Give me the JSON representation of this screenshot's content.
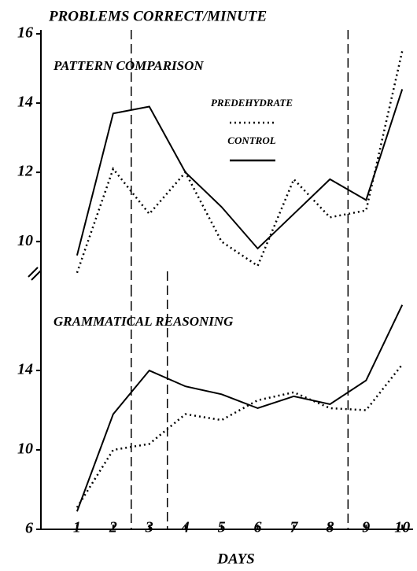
{
  "chart_data": [
    {
      "type": "line",
      "ylabel": "PROBLEMS CORRECT/MINUTE",
      "title": "PATTERN COMPARISON",
      "x": [
        1,
        2,
        3,
        4,
        5,
        6,
        7,
        8,
        9,
        10
      ],
      "series": [
        {
          "name": "PREDEHYDRATE",
          "color": "#000000",
          "style": "dotted",
          "values": [
            9.1,
            12.1,
            10.8,
            12.0,
            10.0,
            9.3,
            11.8,
            10.7,
            10.9,
            15.5
          ]
        },
        {
          "name": "CONTROL",
          "color": "#000000",
          "style": "solid",
          "values": [
            9.6,
            13.7,
            13.9,
            12.0,
            11.0,
            9.8,
            10.8,
            11.8,
            11.2,
            14.4
          ]
        }
      ],
      "xlim": [
        0,
        10.3
      ],
      "ylim": [
        9.3,
        16
      ],
      "yticks": [
        10,
        12,
        14,
        16
      ],
      "phase_lines": [
        2.5,
        8.5
      ],
      "legend": "center"
    },
    {
      "type": "line",
      "title": "GRAMMATICAL REASONING",
      "xlabel": "DAYS",
      "x": [
        1,
        2,
        3,
        4,
        5,
        6,
        7,
        8,
        9,
        10
      ],
      "series": [
        {
          "name": "PREDEHYDRATE",
          "color": "#000000",
          "style": "dotted",
          "values": [
            7.1,
            10.0,
            10.3,
            11.8,
            11.5,
            12.5,
            12.9,
            12.1,
            12.0,
            14.3
          ]
        },
        {
          "name": "CONTROL",
          "color": "#000000",
          "style": "solid",
          "values": [
            6.9,
            11.8,
            14.0,
            13.2,
            12.8,
            12.1,
            12.7,
            12.3,
            13.5,
            17.3
          ]
        }
      ],
      "xlim": [
        0,
        10.3
      ],
      "ylim": [
        6,
        18.2
      ],
      "yticks": [
        6,
        10,
        14
      ],
      "xticks": [
        1,
        2,
        3,
        4,
        5,
        6,
        7,
        8,
        9,
        10
      ],
      "phase_lines": [
        2.5,
        3.5,
        8.5
      ]
    }
  ]
}
